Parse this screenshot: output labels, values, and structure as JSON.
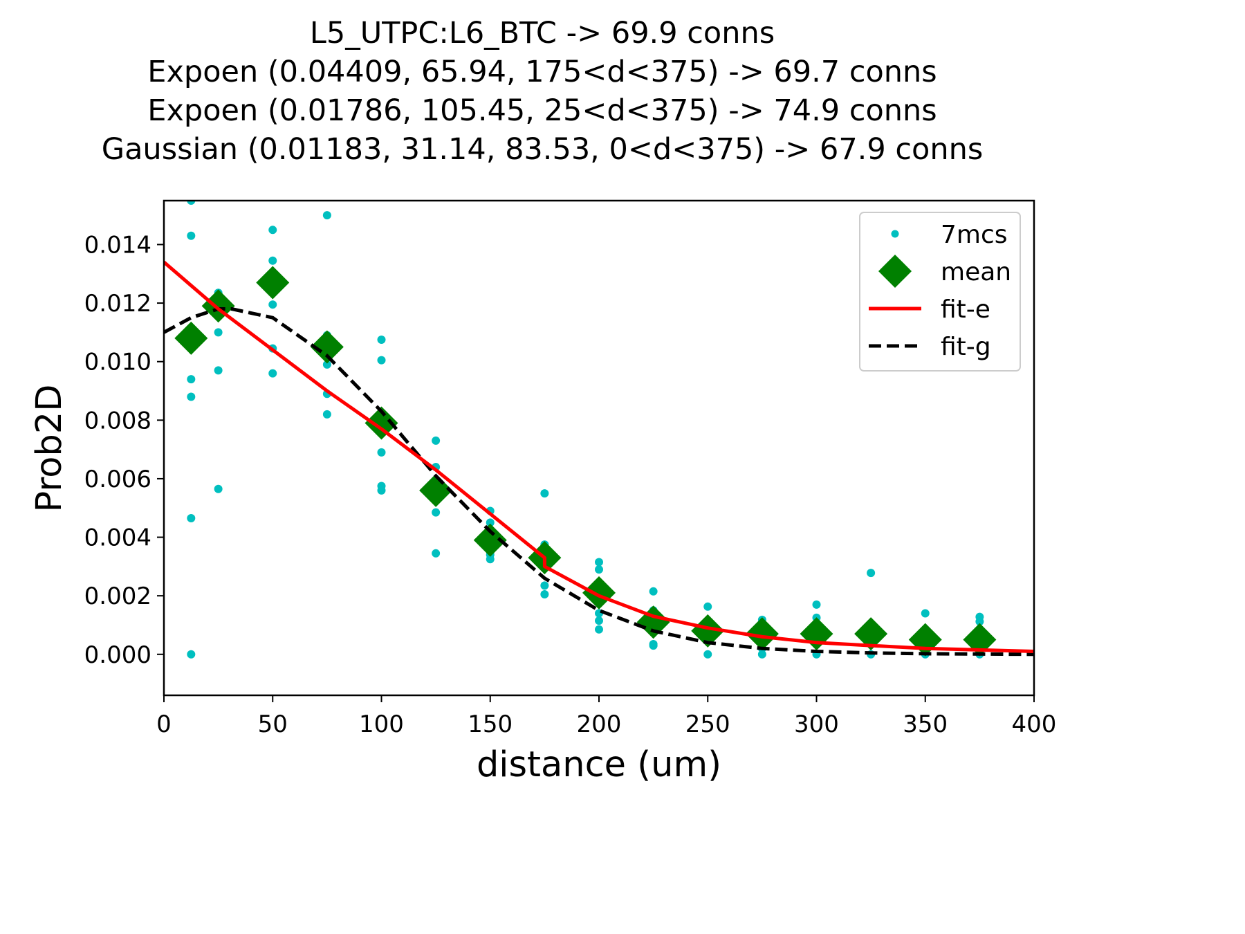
{
  "chart_data": {
    "type": "scatter",
    "title_lines": [
      "L5_UTPC:L6_BTC -> 69.9 conns",
      "Expoen (0.04409, 65.94, 175<d<375) -> 69.7 conns",
      "Expoen (0.01786, 105.45, 25<d<375) -> 74.9 conns",
      "Gaussian (0.01183, 31.14, 83.53, 0<d<375) -> 67.9 conns"
    ],
    "xlabel": "distance (um)",
    "ylabel": "Prob2D",
    "xlim": [
      0,
      400
    ],
    "ylim": [
      -0.0014,
      0.0155
    ],
    "xticks": [
      0,
      50,
      100,
      150,
      200,
      250,
      300,
      350,
      400
    ],
    "xtick_labels": [
      "0",
      "50",
      "100",
      "150",
      "200",
      "250",
      "300",
      "350",
      "400"
    ],
    "yticks": [
      0.0,
      0.002,
      0.004,
      0.006,
      0.008,
      0.01,
      0.012,
      0.014
    ],
    "ytick_labels": [
      "0.000",
      "0.002",
      "0.004",
      "0.006",
      "0.008",
      "0.010",
      "0.012",
      "0.014"
    ],
    "grid": false,
    "legend_position": "top-right",
    "colors": {
      "points": "#00bfbf",
      "mean": "#008000",
      "fit_e": "#ff0000",
      "fit_g": "#000000"
    },
    "series": [
      {
        "name": "7mcs",
        "kind": "points",
        "x": [
          12.5,
          12.5,
          12.5,
          12.5,
          12.5,
          12.5,
          25,
          25,
          25,
          25,
          25,
          50,
          50,
          50,
          50,
          50,
          50,
          75,
          75,
          75,
          75,
          75,
          75,
          100,
          100,
          100,
          100,
          100,
          100,
          125,
          125,
          125,
          125,
          125,
          150,
          150,
          150,
          150,
          150,
          175,
          175,
          175,
          175,
          175,
          200,
          200,
          200,
          200,
          200,
          200,
          225,
          225,
          225,
          225,
          225,
          250,
          250,
          250,
          250,
          275,
          275,
          275,
          275,
          300,
          300,
          300,
          300,
          325,
          325,
          325,
          350,
          350,
          350,
          375,
          375,
          375,
          375
        ],
        "y": [
          0.0155,
          0.0143,
          0.0094,
          0.0088,
          0.00465,
          0.0,
          0.01235,
          0.0121,
          0.011,
          0.0097,
          0.00565,
          0.0145,
          0.01345,
          0.01195,
          0.01045,
          0.0096,
          0.0127,
          0.015,
          0.0109,
          0.0099,
          0.0089,
          0.0082,
          0.0106,
          0.01075,
          0.01005,
          0.0081,
          0.0069,
          0.00575,
          0.0056,
          0.0073,
          0.0064,
          0.0056,
          0.00485,
          0.00345,
          0.0049,
          0.0045,
          0.0035,
          0.0034,
          0.00325,
          0.0055,
          0.00375,
          0.0035,
          0.00235,
          0.00205,
          0.00315,
          0.0029,
          0.0021,
          0.0014,
          0.00115,
          0.00085,
          0.00215,
          0.0015,
          0.001,
          0.00035,
          0.0003,
          0.00163,
          0.0008,
          0.0005,
          0.0,
          0.00118,
          0.0007,
          0.0002,
          0.0,
          0.0017,
          0.00125,
          0.0006,
          0.0,
          0.00278,
          0.0008,
          0.0,
          0.0014,
          0.0004,
          0.0,
          0.00128,
          0.00112,
          0.0006,
          0.0
        ]
      },
      {
        "name": "mean",
        "kind": "markers",
        "x": [
          12.5,
          25,
          50,
          75,
          100,
          125,
          150,
          175,
          200,
          225,
          250,
          275,
          300,
          325,
          350,
          375
        ],
        "y": [
          0.0108,
          0.0119,
          0.0127,
          0.0105,
          0.0079,
          0.0056,
          0.0039,
          0.0033,
          0.0021,
          0.0011,
          0.0008,
          0.0007,
          0.0007,
          0.0007,
          0.0005,
          0.0005
        ]
      },
      {
        "name": "fit-e",
        "kind": "line",
        "x": [
          0,
          12.5,
          25,
          50,
          75,
          100,
          125,
          150,
          175,
          175,
          200,
          225,
          250,
          275,
          300,
          325,
          350,
          375,
          400
        ],
        "y": [
          0.0134,
          0.0126,
          0.0118,
          0.0104,
          0.009,
          0.0077,
          0.0063,
          0.0048,
          0.0033,
          0.003,
          0.002,
          0.0013,
          0.0009,
          0.0006,
          0.0004,
          0.0003,
          0.0002,
          0.00015,
          0.0001
        ]
      },
      {
        "name": "fit-g",
        "kind": "dashed-line",
        "x": [
          0,
          12.5,
          25,
          31.14,
          50,
          75,
          100,
          125,
          150,
          175,
          200,
          225,
          250,
          275,
          300,
          325,
          350,
          375,
          400
        ],
        "y": [
          0.011,
          0.0115,
          0.0118,
          0.0118,
          0.0115,
          0.0102,
          0.0083,
          0.0061,
          0.0042,
          0.0026,
          0.0015,
          0.0008,
          0.0004,
          0.0002,
          0.0001,
          5e-05,
          2e-05,
          1e-05,
          0.0
        ]
      }
    ]
  }
}
